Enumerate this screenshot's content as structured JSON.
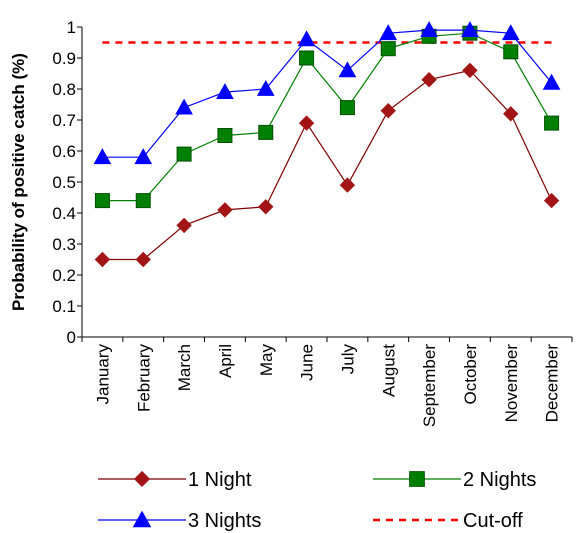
{
  "chart_data": {
    "type": "line",
    "title": "",
    "xlabel": "",
    "ylabel": "Probability of positive catch (%)",
    "ylim": [
      0,
      1
    ],
    "yticks": [
      "0",
      "0.1",
      "0.2",
      "0.3",
      "0.4",
      "0.5",
      "0.6",
      "0.7",
      "0.8",
      "0.9",
      "1"
    ],
    "grid": false,
    "legend_position": "bottom",
    "categories": [
      "January",
      "February",
      "March",
      "April",
      "May",
      "June",
      "July",
      "August",
      "September",
      "October",
      "November",
      "December"
    ],
    "series": [
      {
        "name": "1 Night",
        "marker": "diamond",
        "color": "#800000",
        "markerColor": "#a31515",
        "values": [
          0.25,
          0.25,
          0.36,
          0.41,
          0.42,
          0.69,
          0.49,
          0.73,
          0.83,
          0.86,
          0.72,
          0.44
        ]
      },
      {
        "name": "2 Nights",
        "marker": "square",
        "color": "#008000",
        "markerColor": "#008000",
        "values": [
          0.44,
          0.44,
          0.59,
          0.65,
          0.66,
          0.9,
          0.74,
          0.93,
          0.97,
          0.98,
          0.92,
          0.69
        ]
      },
      {
        "name": "3 Nights",
        "marker": "triangle",
        "color": "#0000ff",
        "markerColor": "#0000ff",
        "values": [
          0.58,
          0.58,
          0.74,
          0.79,
          0.8,
          0.96,
          0.86,
          0.98,
          0.99,
          0.99,
          0.98,
          0.82
        ]
      }
    ],
    "reference_lines": [
      {
        "name": "Cut-off",
        "value": 0.95,
        "style": "dashed",
        "color": "#ff0000"
      }
    ]
  }
}
